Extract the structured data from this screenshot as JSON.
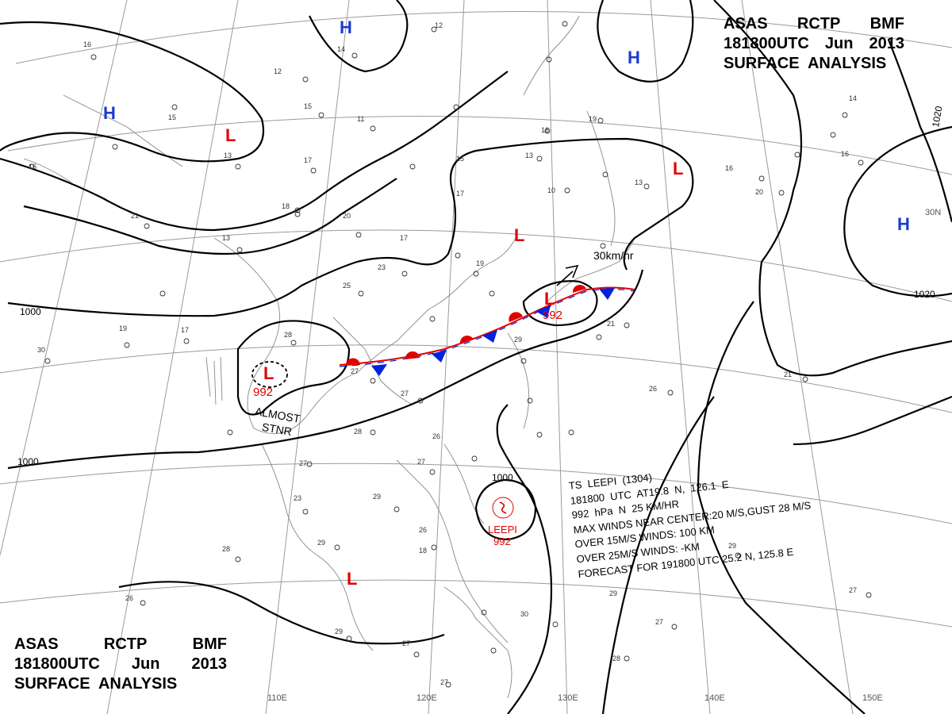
{
  "header": {
    "line1": [
      "ASAS",
      "RCTP",
      "BMF"
    ],
    "line2": [
      "181800UTC",
      "Jun",
      "2013"
    ],
    "line3": "SURFACE  ANALYSIS"
  },
  "storm_info": {
    "l1": "TS  LEEPI  (1304)",
    "l2": "181800  UTC  AT19.8  N,  126.1  E",
    "l3": "992  hPa  N  25 KM/HR",
    "l4": "MAX WINDS NEAR CENTER:20 M/S,GUST 28 M/S",
    "l5": "OVER 15M/S WINDS: 100 KM",
    "l6": "OVER 25M/S WINDS: -KM",
    "l7": "FORECAST FOR 191800 UTC 25.2 N, 125.8 E"
  },
  "centers": {
    "H": "H",
    "L": "L"
  },
  "low_pressures": {
    "west_low": "992",
    "frontal_low": "992",
    "typhoon": "992"
  },
  "typhoon_name": "LEEPI",
  "notes": {
    "almost": "ALMOST",
    "stnr": "STNR",
    "motion": "30km/hr"
  },
  "isobar_labels": {
    "west": "1000",
    "southwest": "1000",
    "typhoon": "1000",
    "east": "1020",
    "northeast": "1020"
  },
  "longitude_ticks": [
    "110E",
    "120E",
    "130E",
    "140E",
    "150E"
  ],
  "latitude_ticks": [
    "30N"
  ],
  "colors": {
    "high": "#1a3ccc",
    "low": "#e00000",
    "warm_front": "#e00000",
    "cold_front": "#0022dd",
    "isobar": "#000000",
    "grid": "#888888"
  }
}
